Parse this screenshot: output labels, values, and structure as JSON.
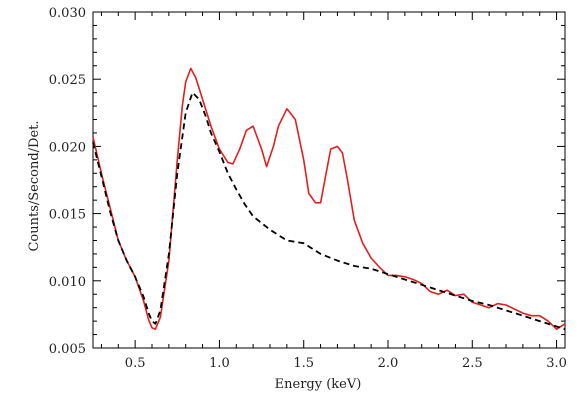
{
  "chart_data": {
    "type": "line",
    "xlabel": "Energy (keV)",
    "ylabel": "Counts/Second/Det.",
    "xlim": [
      0.25,
      3.05
    ],
    "ylim": [
      0.005,
      0.03
    ],
    "grid": false,
    "x_ticks": [
      0.5,
      1.0,
      1.5,
      2.0,
      2.5,
      3.0
    ],
    "x_tick_labels": [
      "0.5",
      "1.0",
      "1.5",
      "2.0",
      "2.5",
      "3.0"
    ],
    "y_ticks": [
      0.005,
      0.01,
      0.015,
      0.02,
      0.025,
      0.03
    ],
    "y_tick_labels": [
      "0.005",
      "0.010",
      "0.015",
      "0.020",
      "0.025",
      "0.030"
    ],
    "series": [
      {
        "color": "#e02020",
        "dash": "solid",
        "x": [
          0.25,
          0.3,
          0.35,
          0.4,
          0.45,
          0.5,
          0.55,
          0.58,
          0.6,
          0.62,
          0.65,
          0.7,
          0.75,
          0.78,
          0.8,
          0.83,
          0.86,
          0.9,
          0.95,
          1.0,
          1.05,
          1.08,
          1.12,
          1.16,
          1.2,
          1.25,
          1.28,
          1.32,
          1.35,
          1.4,
          1.45,
          1.5,
          1.53,
          1.57,
          1.6,
          1.63,
          1.66,
          1.7,
          1.73,
          1.76,
          1.8,
          1.85,
          1.9,
          1.95,
          2.0,
          2.05,
          2.1,
          2.15,
          2.2,
          2.25,
          2.3,
          2.35,
          2.4,
          2.45,
          2.5,
          2.55,
          2.6,
          2.65,
          2.7,
          2.75,
          2.8,
          2.85,
          2.9,
          2.95,
          3.0,
          3.05
        ],
        "y": [
          0.0207,
          0.018,
          0.0155,
          0.013,
          0.0115,
          0.0103,
          0.0085,
          0.0071,
          0.0065,
          0.0064,
          0.0073,
          0.0115,
          0.019,
          0.023,
          0.0248,
          0.0258,
          0.0251,
          0.0235,
          0.0215,
          0.0198,
          0.0188,
          0.0187,
          0.0198,
          0.0212,
          0.0215,
          0.0198,
          0.0185,
          0.02,
          0.0215,
          0.0228,
          0.022,
          0.019,
          0.0165,
          0.0158,
          0.0158,
          0.0178,
          0.0198,
          0.02,
          0.0195,
          0.0175,
          0.0145,
          0.0128,
          0.0117,
          0.011,
          0.0104,
          0.0104,
          0.0103,
          0.0101,
          0.0098,
          0.0092,
          0.009,
          0.0093,
          0.0089,
          0.009,
          0.0084,
          0.0082,
          0.008,
          0.0083,
          0.0082,
          0.0079,
          0.0076,
          0.0074,
          0.0074,
          0.007,
          0.0064,
          0.0068
        ]
      },
      {
        "color": "#000000",
        "dash": "dashed",
        "x": [
          0.25,
          0.3,
          0.35,
          0.4,
          0.45,
          0.5,
          0.55,
          0.58,
          0.6,
          0.62,
          0.65,
          0.7,
          0.75,
          0.8,
          0.84,
          0.88,
          0.92,
          0.95,
          1.0,
          1.05,
          1.1,
          1.15,
          1.2,
          1.3,
          1.4,
          1.5,
          1.6,
          1.7,
          1.8,
          1.9,
          2.0,
          2.1,
          2.2,
          2.3,
          2.4,
          2.5,
          2.6,
          2.7,
          2.8,
          2.9,
          3.0,
          3.05
        ],
        "y": [
          0.0203,
          0.0178,
          0.0152,
          0.013,
          0.0115,
          0.0103,
          0.0088,
          0.0076,
          0.007,
          0.0068,
          0.0078,
          0.012,
          0.018,
          0.0225,
          0.024,
          0.0235,
          0.0222,
          0.021,
          0.0196,
          0.018,
          0.0168,
          0.0157,
          0.0148,
          0.0138,
          0.013,
          0.0128,
          0.012,
          0.0115,
          0.0111,
          0.0109,
          0.0105,
          0.0101,
          0.0097,
          0.0093,
          0.0089,
          0.0085,
          0.0082,
          0.0078,
          0.0074,
          0.007,
          0.0066,
          0.0064
        ]
      }
    ]
  }
}
